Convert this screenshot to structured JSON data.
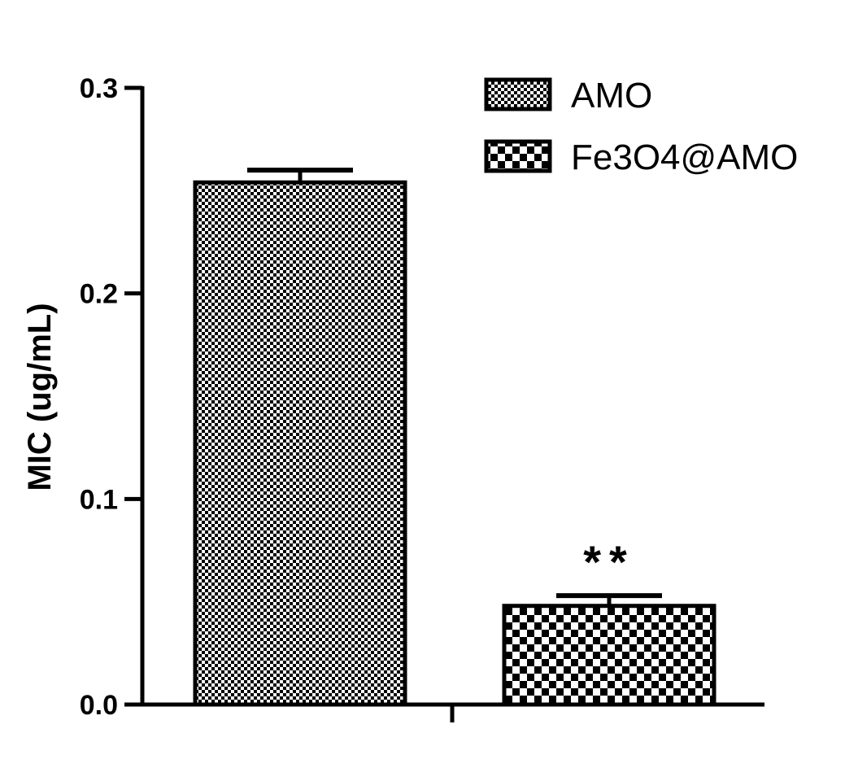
{
  "chart_data": {
    "type": "bar",
    "categories": [
      "AMO",
      "Fe3O4@AMO"
    ],
    "values": [
      0.254,
      0.048
    ],
    "errors": [
      0.006,
      0.005
    ],
    "ylabel": "MIC (ug/mL)",
    "xlabel": "",
    "ylim": [
      0,
      0.3
    ],
    "yticks": [
      0.0,
      0.1,
      0.2,
      0.3
    ],
    "ytick_labels": [
      "0.0",
      "0.1",
      "0.2",
      "0.3"
    ],
    "legend": {
      "placement": "top-right",
      "entries": [
        "AMO",
        "Fe3O4@AMO"
      ]
    },
    "annotations": [
      {
        "category": "Fe3O4@AMO",
        "text": "**"
      }
    ],
    "bar_fill": "checkerboard",
    "colors": {
      "bar_edge": "#000000",
      "pattern_dark": "#000000",
      "pattern_light": "#ffffff"
    },
    "grid": false
  }
}
